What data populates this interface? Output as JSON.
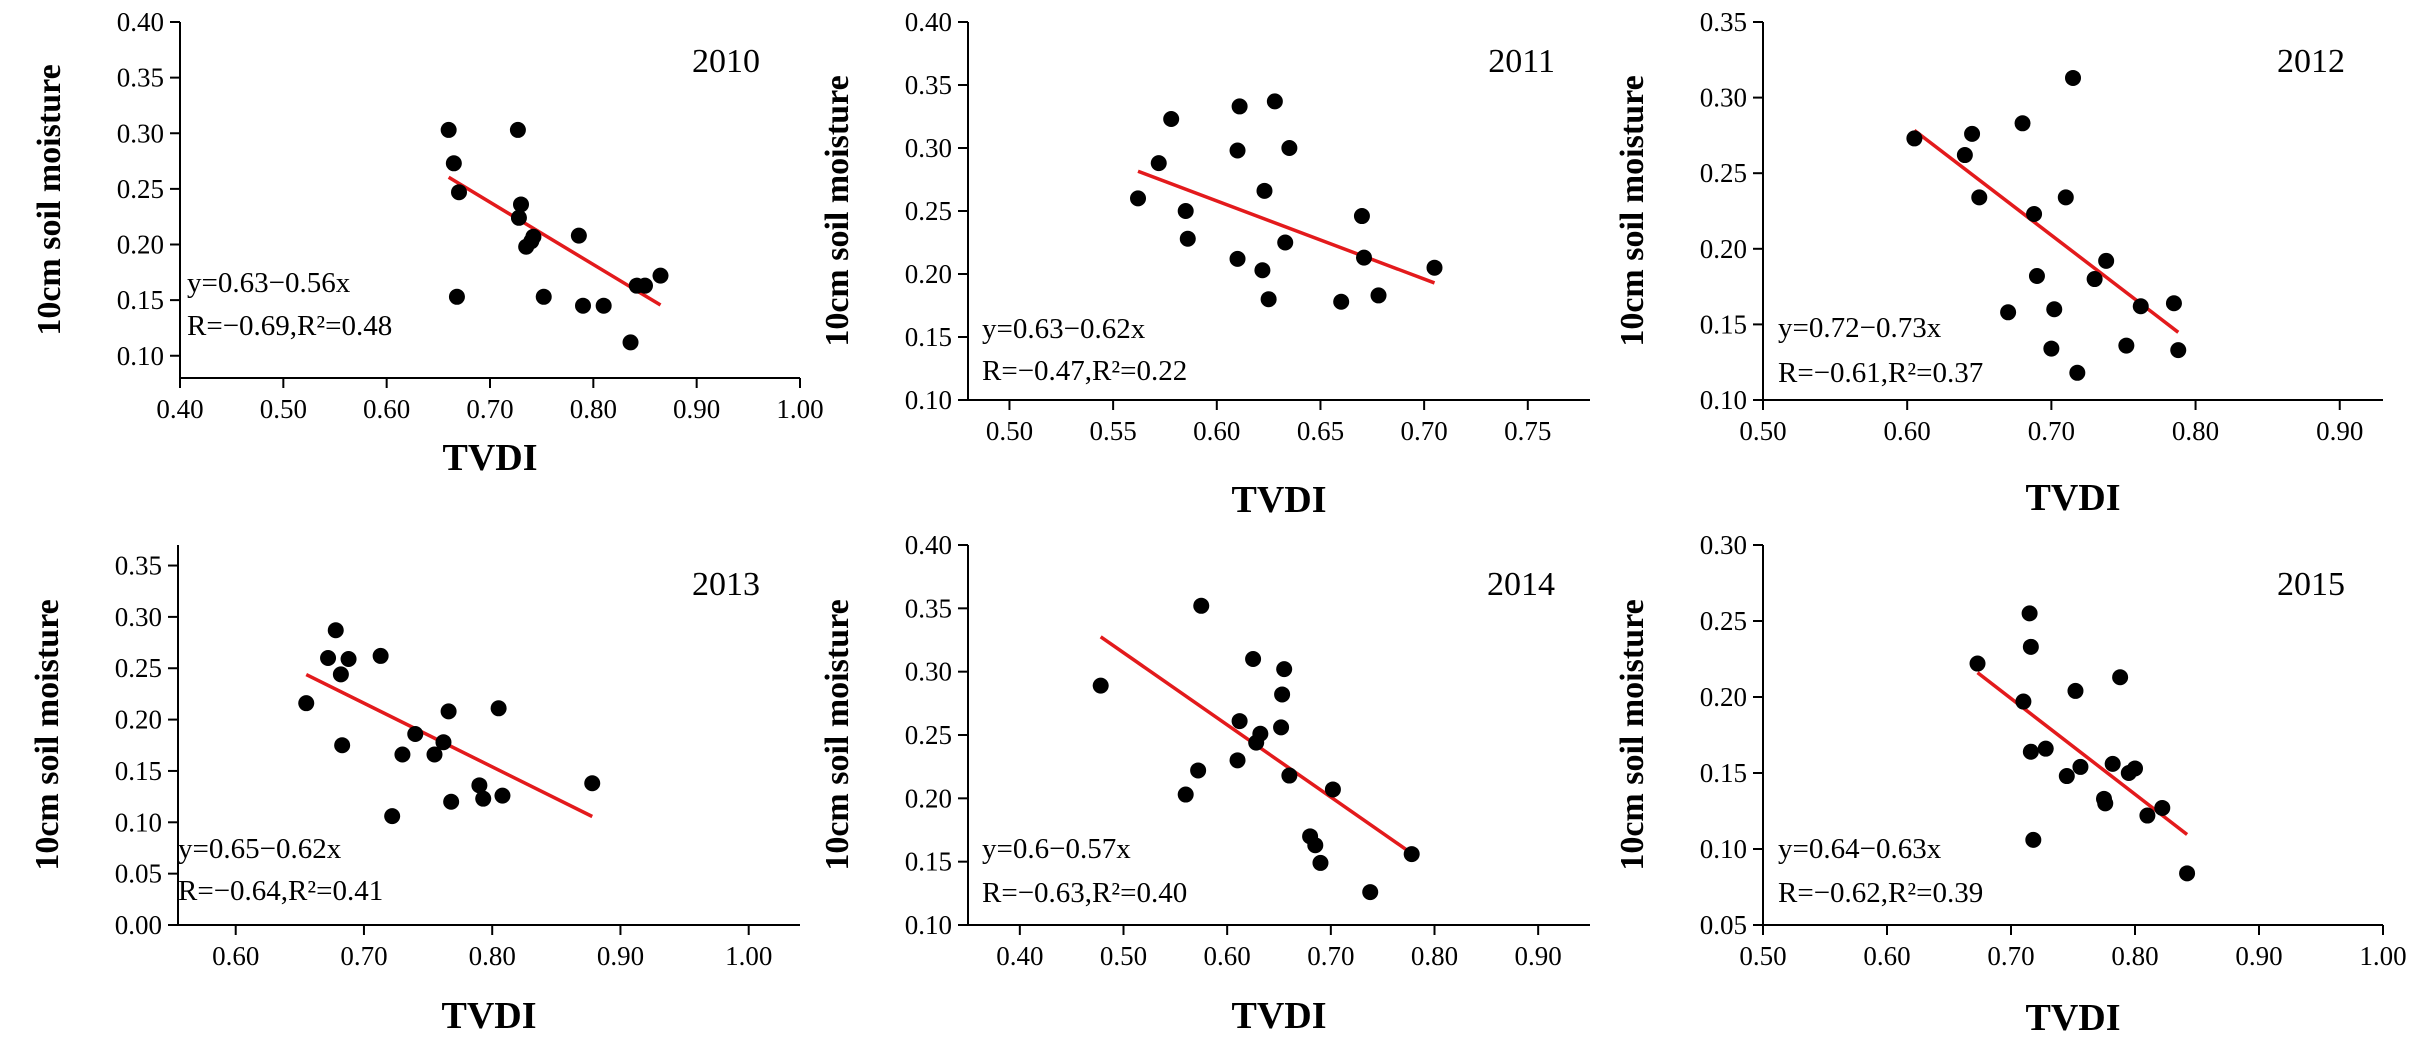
{
  "colors": {
    "points": "#000000",
    "fit_line": "#e31a1c",
    "axes": "#000000"
  },
  "chart_data": [
    {
      "type": "scatter",
      "title": "2010",
      "xlabel": "TVDI",
      "ylabel": "10cm soil moisture",
      "xlim": [
        0.4,
        1.0
      ],
      "ylim": [
        0.08,
        0.4
      ],
      "xticks": [
        "0.40",
        "0.50",
        "0.60",
        "0.70",
        "0.80",
        "0.90",
        "1.00"
      ],
      "yticks": [
        "0.10",
        "0.15",
        "0.20",
        "0.25",
        "0.30",
        "0.35",
        "0.40"
      ],
      "equation": "y=0.63−0.56x",
      "stats": "R=−0.69,R²=0.48",
      "fit_range": [
        0.66,
        0.865
      ],
      "fit": {
        "intercept": 0.63,
        "slope": -0.56
      },
      "points": [
        [
          0.66,
          0.303
        ],
        [
          0.665,
          0.273
        ],
        [
          0.67,
          0.247
        ],
        [
          0.668,
          0.153
        ],
        [
          0.727,
          0.303
        ],
        [
          0.728,
          0.224
        ],
        [
          0.73,
          0.236
        ],
        [
          0.735,
          0.198
        ],
        [
          0.74,
          0.203
        ],
        [
          0.742,
          0.207
        ],
        [
          0.752,
          0.153
        ],
        [
          0.786,
          0.208
        ],
        [
          0.79,
          0.145
        ],
        [
          0.81,
          0.145
        ],
        [
          0.836,
          0.112
        ],
        [
          0.842,
          0.163
        ],
        [
          0.85,
          0.163
        ],
        [
          0.865,
          0.172
        ]
      ]
    },
    {
      "type": "scatter",
      "title": "2011",
      "xlabel": "TVDI",
      "ylabel": "10cm soil moisture",
      "xlim": [
        0.48,
        0.78
      ],
      "ylim": [
        0.1,
        0.4
      ],
      "xticks": [
        "0.50",
        "0.55",
        "0.60",
        "0.65",
        "0.70",
        "0.75"
      ],
      "yticks": [
        "0.10",
        "0.15",
        "0.20",
        "0.25",
        "0.30",
        "0.35",
        "0.40"
      ],
      "equation": "y=0.63−0.62x",
      "stats": "R=−0.47,R²=0.22",
      "fit_range": [
        0.562,
        0.705
      ],
      "fit": {
        "intercept": 0.63,
        "slope": -0.62
      },
      "points": [
        [
          0.562,
          0.26
        ],
        [
          0.572,
          0.288
        ],
        [
          0.578,
          0.323
        ],
        [
          0.585,
          0.25
        ],
        [
          0.586,
          0.228
        ],
        [
          0.61,
          0.298
        ],
        [
          0.611,
          0.333
        ],
        [
          0.61,
          0.212
        ],
        [
          0.622,
          0.203
        ],
        [
          0.623,
          0.266
        ],
        [
          0.625,
          0.18
        ],
        [
          0.628,
          0.337
        ],
        [
          0.633,
          0.225
        ],
        [
          0.635,
          0.3
        ],
        [
          0.66,
          0.178
        ],
        [
          0.67,
          0.246
        ],
        [
          0.671,
          0.213
        ],
        [
          0.678,
          0.183
        ],
        [
          0.705,
          0.205
        ]
      ]
    },
    {
      "type": "scatter",
      "title": "2012",
      "xlabel": "TVDI",
      "ylabel": "10cm soil moisture",
      "xlim": [
        0.5,
        0.93
      ],
      "ylim": [
        0.1,
        0.35
      ],
      "xticks": [
        "0.50",
        "0.60",
        "0.70",
        "0.80",
        "0.90"
      ],
      "yticks": [
        "0.10",
        "0.15",
        "0.20",
        "0.25",
        "0.30",
        "0.35"
      ],
      "equation": "y=0.72−0.73x",
      "stats": "R=−0.61,R²=0.37",
      "fit_range": [
        0.605,
        0.788
      ],
      "fit": {
        "intercept": 0.72,
        "slope": -0.73
      },
      "points": [
        [
          0.605,
          0.273
        ],
        [
          0.64,
          0.262
        ],
        [
          0.645,
          0.276
        ],
        [
          0.65,
          0.234
        ],
        [
          0.67,
          0.158
        ],
        [
          0.68,
          0.283
        ],
        [
          0.688,
          0.223
        ],
        [
          0.69,
          0.182
        ],
        [
          0.7,
          0.134
        ],
        [
          0.702,
          0.16
        ],
        [
          0.71,
          0.234
        ],
        [
          0.715,
          0.313
        ],
        [
          0.718,
          0.118
        ],
        [
          0.73,
          0.18
        ],
        [
          0.738,
          0.192
        ],
        [
          0.752,
          0.136
        ],
        [
          0.762,
          0.162
        ],
        [
          0.785,
          0.164
        ],
        [
          0.788,
          0.133
        ]
      ]
    },
    {
      "type": "scatter",
      "title": "2013",
      "xlabel": "TVDI",
      "ylabel": "10cm soil moisture",
      "xlim": [
        0.555,
        1.04
      ],
      "ylim": [
        0.0,
        0.37
      ],
      "xticks": [
        "0.60",
        "0.70",
        "0.80",
        "0.90",
        "1.00"
      ],
      "yticks": [
        "0.00",
        "0.05",
        "0.10",
        "0.15",
        "0.20",
        "0.25",
        "0.30",
        "0.35"
      ],
      "equation": "y=0.65−0.62x",
      "stats": "R=−0.64,R²=0.41",
      "fit_range": [
        0.655,
        0.878
      ],
      "fit": {
        "intercept": 0.65,
        "slope": -0.62
      },
      "points": [
        [
          0.655,
          0.216
        ],
        [
          0.672,
          0.26
        ],
        [
          0.678,
          0.287
        ],
        [
          0.682,
          0.244
        ],
        [
          0.683,
          0.175
        ],
        [
          0.688,
          0.259
        ],
        [
          0.713,
          0.262
        ],
        [
          0.722,
          0.106
        ],
        [
          0.73,
          0.166
        ],
        [
          0.74,
          0.186
        ],
        [
          0.755,
          0.166
        ],
        [
          0.762,
          0.178
        ],
        [
          0.766,
          0.208
        ],
        [
          0.768,
          0.12
        ],
        [
          0.79,
          0.136
        ],
        [
          0.793,
          0.123
        ],
        [
          0.805,
          0.211
        ],
        [
          0.808,
          0.126
        ],
        [
          0.878,
          0.138
        ]
      ]
    },
    {
      "type": "scatter",
      "title": "2014",
      "xlabel": "TVDI",
      "ylabel": "10cm soil moisture",
      "xlim": [
        0.35,
        0.95
      ],
      "ylim": [
        0.1,
        0.4
      ],
      "xticks": [
        "0.40",
        "0.50",
        "0.60",
        "0.70",
        "0.80",
        "0.90"
      ],
      "yticks": [
        "0.10",
        "0.15",
        "0.20",
        "0.25",
        "0.30",
        "0.35",
        "0.40"
      ],
      "equation": "y=0.6−0.57x",
      "stats": "R=−0.63,R²=0.40",
      "fit_range": [
        0.478,
        0.778
      ],
      "fit": {
        "intercept": 0.6,
        "slope": -0.57
      },
      "points": [
        [
          0.478,
          0.289
        ],
        [
          0.56,
          0.203
        ],
        [
          0.572,
          0.222
        ],
        [
          0.575,
          0.352
        ],
        [
          0.61,
          0.23
        ],
        [
          0.612,
          0.261
        ],
        [
          0.625,
          0.31
        ],
        [
          0.628,
          0.244
        ],
        [
          0.632,
          0.251
        ],
        [
          0.652,
          0.256
        ],
        [
          0.653,
          0.282
        ],
        [
          0.655,
          0.302
        ],
        [
          0.66,
          0.218
        ],
        [
          0.68,
          0.17
        ],
        [
          0.685,
          0.163
        ],
        [
          0.69,
          0.149
        ],
        [
          0.702,
          0.207
        ],
        [
          0.738,
          0.126
        ],
        [
          0.778,
          0.156
        ]
      ]
    },
    {
      "type": "scatter",
      "title": "2015",
      "xlabel": "TVDI",
      "ylabel": "10cm soil moisture",
      "xlim": [
        0.5,
        1.0
      ],
      "ylim": [
        0.05,
        0.3
      ],
      "xticks": [
        "0.50",
        "0.60",
        "0.70",
        "0.80",
        "0.90",
        "1.00"
      ],
      "yticks": [
        "0.05",
        "0.10",
        "0.15",
        "0.20",
        "0.25",
        "0.30"
      ],
      "equation": "y=0.64−0.63x",
      "stats": "R=−0.62,R²=0.39",
      "fit_range": [
        0.673,
        0.842
      ],
      "fit": {
        "intercept": 0.64,
        "slope": -0.63
      },
      "points": [
        [
          0.673,
          0.222
        ],
        [
          0.71,
          0.197
        ],
        [
          0.715,
          0.255
        ],
        [
          0.716,
          0.233
        ],
        [
          0.716,
          0.164
        ],
        [
          0.718,
          0.106
        ],
        [
          0.728,
          0.166
        ],
        [
          0.745,
          0.148
        ],
        [
          0.752,
          0.204
        ],
        [
          0.756,
          0.154
        ],
        [
          0.775,
          0.133
        ],
        [
          0.776,
          0.13
        ],
        [
          0.782,
          0.156
        ],
        [
          0.788,
          0.213
        ],
        [
          0.795,
          0.15
        ],
        [
          0.8,
          0.153
        ],
        [
          0.81,
          0.122
        ],
        [
          0.822,
          0.127
        ],
        [
          0.842,
          0.084
        ]
      ]
    }
  ]
}
